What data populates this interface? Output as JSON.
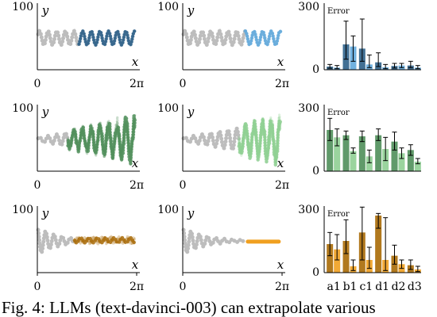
{
  "caption": "Fig. 4:  LLMs (text-davinci-003) can extrapolate various",
  "colors": {
    "history": "#bdbdbd",
    "blue_dark": "#2e6088",
    "blue_light": "#62a9dc",
    "green_dark": "#4f8f5a",
    "green_light": "#8fcf93",
    "orange_dark": "#a86a06",
    "orange_light": "#f0a020"
  },
  "chart_data": [
    {
      "type": "line",
      "row": 1,
      "col": 1,
      "x_ticks": [
        "0",
        "2π"
      ],
      "y_ticks": [
        "100"
      ],
      "xlabel": "x",
      "ylabel": "y",
      "xlim": [
        0,
        6.283
      ],
      "ylim": [
        0,
        100
      ],
      "pattern": "sinusoid",
      "history_color": "#bdbdbd",
      "prediction_color": "#2e6088",
      "prediction_style": "samples",
      "prediction_start_x": 2.64
    },
    {
      "type": "line",
      "row": 1,
      "col": 2,
      "x_ticks": [
        "0",
        "2π"
      ],
      "y_ticks": [
        "100"
      ],
      "xlabel": "x",
      "ylabel": "y",
      "xlim": [
        0,
        6.283
      ],
      "ylim": [
        0,
        100
      ],
      "pattern": "sinusoid",
      "history_color": "#bdbdbd",
      "prediction_color": "#62a9dc",
      "prediction_style": "samples",
      "prediction_start_x": 3.96
    },
    {
      "type": "bar",
      "row": 1,
      "col": 3,
      "title": "Error",
      "ylim": [
        0,
        300
      ],
      "y_ticks": [
        "0",
        "300"
      ],
      "categories": [
        "a1",
        "b1",
        "c1",
        "d1",
        "d2",
        "d3"
      ],
      "series": [
        {
          "values": [
            15,
            120,
            100,
            35,
            18,
            20
          ],
          "err_low": [
            7,
            50,
            40,
            15,
            8,
            10
          ],
          "err_high": [
            25,
            230,
            240,
            80,
            30,
            40
          ]
        },
        {
          "values": [
            10,
            110,
            25,
            12,
            20,
            10
          ],
          "err_low": [
            5,
            40,
            10,
            5,
            10,
            5
          ],
          "err_high": [
            20,
            160,
            70,
            25,
            30,
            20
          ]
        }
      ]
    },
    {
      "type": "line",
      "row": 2,
      "col": 1,
      "x_ticks": [
        "0",
        "2π"
      ],
      "y_ticks": [
        "100"
      ],
      "xlabel": "x",
      "ylabel": "y",
      "xlim": [
        0,
        6.283
      ],
      "ylim": [
        0,
        100
      ],
      "pattern": "growing sinusoid",
      "history_color": "#bdbdbd",
      "prediction_color": "#4f8f5a",
      "prediction_style": "scattered samples",
      "prediction_start_x": 1.94
    },
    {
      "type": "line",
      "row": 2,
      "col": 2,
      "x_ticks": [
        "0",
        "2π"
      ],
      "y_ticks": [
        "100"
      ],
      "xlabel": "x",
      "ylabel": "y",
      "xlim": [
        0,
        6.283
      ],
      "ylim": [
        0,
        100
      ],
      "pattern": "growing sinusoid",
      "history_color": "#bdbdbd",
      "prediction_color": "#8fcf93",
      "prediction_style": "scattered samples",
      "prediction_start_x": 3.56
    },
    {
      "type": "bar",
      "row": 2,
      "col": 3,
      "title": "Error",
      "ylim": [
        0,
        300
      ],
      "y_ticks": [
        "0",
        "300"
      ],
      "categories": [
        "a1",
        "b1",
        "c1",
        "d1",
        "d2",
        "d3"
      ],
      "series": [
        {
          "values": [
            195,
            170,
            165,
            170,
            140,
            100
          ],
          "err_low": [
            145,
            150,
            140,
            145,
            100,
            75
          ],
          "err_high": [
            250,
            190,
            190,
            200,
            185,
            125
          ]
        },
        {
          "values": [
            160,
            95,
            70,
            105,
            85,
            45
          ],
          "err_low": [
            120,
            85,
            40,
            50,
            60,
            35
          ],
          "err_high": [
            200,
            110,
            100,
            160,
            110,
            60
          ]
        }
      ]
    },
    {
      "type": "line",
      "row": 3,
      "col": 1,
      "x_ticks": [
        "0",
        "2π"
      ],
      "y_ticks": [
        "100"
      ],
      "xlabel": "x",
      "ylabel": "y",
      "xlim": [
        0,
        6.283
      ],
      "ylim": [
        0,
        100
      ],
      "pattern": "damped oscillation",
      "history_color": "#bdbdbd",
      "prediction_color": "#a86a06",
      "prediction_style": "samples",
      "prediction_start_x": 2.36
    },
    {
      "type": "line",
      "row": 3,
      "col": 2,
      "x_ticks": [
        "0",
        "2π"
      ],
      "y_ticks": [
        "100"
      ],
      "xlabel": "x",
      "ylabel": "y",
      "xlim": [
        0,
        6.283
      ],
      "ylim": [
        0,
        100
      ],
      "pattern": "damped oscillation",
      "history_color": "#bdbdbd",
      "prediction_color": "#f0a020",
      "prediction_style": "flat band",
      "prediction_start_x": 3.99
    },
    {
      "type": "bar",
      "row": 3,
      "col": 3,
      "title": "Error",
      "ylim": [
        0,
        300
      ],
      "y_ticks": [
        "0",
        "300"
      ],
      "categories": [
        "a1",
        "b1",
        "c1",
        "d1",
        "d2",
        "d3"
      ],
      "series": [
        {
          "values": [
            135,
            150,
            190,
            270,
            80,
            35
          ],
          "err_low": [
            80,
            90,
            60,
            210,
            40,
            15
          ],
          "err_high": [
            190,
            250,
            310,
            280,
            130,
            60
          ]
        },
        {
          "values": [
            110,
            30,
            60,
            60,
            40,
            15
          ],
          "err_low": [
            60,
            10,
            20,
            10,
            20,
            5
          ],
          "err_high": [
            180,
            60,
            120,
            260,
            60,
            30
          ]
        }
      ]
    }
  ]
}
